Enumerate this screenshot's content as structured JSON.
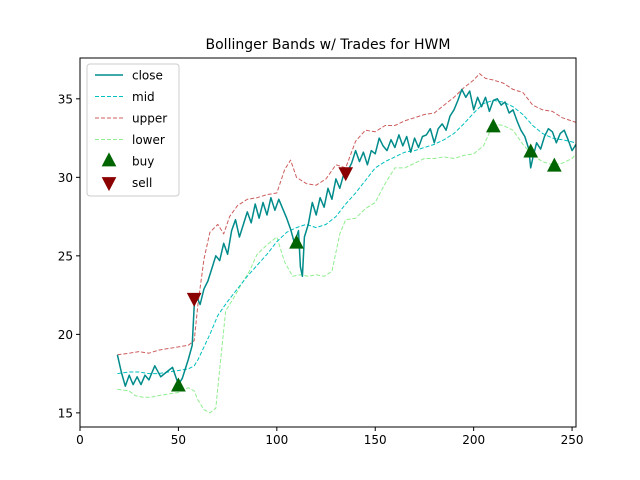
{
  "chart_data": {
    "type": "line",
    "title": "Bollinger Bands w/ Trades for HWM",
    "xlabel": "",
    "ylabel": "",
    "xlim": [
      0,
      252
    ],
    "ylim": [
      14.1,
      37.6
    ],
    "x_ticks": [
      0,
      50,
      100,
      150,
      200,
      250
    ],
    "y_ticks": [
      15,
      20,
      25,
      30,
      35
    ],
    "grid": false,
    "legend_position": "upper-left",
    "series": [
      {
        "name": "close",
        "color": "#008b8b",
        "style": "solid",
        "points": [
          [
            19,
            18.7
          ],
          [
            21,
            17.6
          ],
          [
            23,
            16.7
          ],
          [
            25,
            17.4
          ],
          [
            27,
            16.8
          ],
          [
            29,
            17.3
          ],
          [
            31,
            16.8
          ],
          [
            33,
            17.4
          ],
          [
            35,
            17.1
          ],
          [
            38,
            18.0
          ],
          [
            41,
            17.3
          ],
          [
            44,
            17.6
          ],
          [
            47,
            17.9
          ],
          [
            50,
            16.8
          ],
          [
            52,
            17.2
          ],
          [
            55,
            18.4
          ],
          [
            57,
            19.3
          ],
          [
            58,
            21.8
          ],
          [
            59,
            22.5
          ],
          [
            61,
            21.9
          ],
          [
            63,
            22.9
          ],
          [
            65,
            23.4
          ],
          [
            67,
            24.2
          ],
          [
            69,
            25.0
          ],
          [
            71,
            24.7
          ],
          [
            73,
            25.8
          ],
          [
            75,
            25.1
          ],
          [
            77,
            26.6
          ],
          [
            79,
            27.3
          ],
          [
            81,
            26.2
          ],
          [
            83,
            27.0
          ],
          [
            85,
            27.8
          ],
          [
            87,
            27.1
          ],
          [
            89,
            28.3
          ],
          [
            91,
            27.4
          ],
          [
            93,
            28.4
          ],
          [
            95,
            27.6
          ],
          [
            97,
            28.7
          ],
          [
            99,
            27.9
          ],
          [
            101,
            28.6
          ],
          [
            103,
            28.0
          ],
          [
            105,
            27.4
          ],
          [
            107,
            26.7
          ],
          [
            109,
            25.8
          ],
          [
            111,
            26.6
          ],
          [
            112,
            24.3
          ],
          [
            113,
            23.7
          ],
          [
            114,
            26.2
          ],
          [
            116,
            27.0
          ],
          [
            118,
            28.4
          ],
          [
            120,
            27.6
          ],
          [
            122,
            28.7
          ],
          [
            124,
            28.1
          ],
          [
            126,
            29.3
          ],
          [
            128,
            28.6
          ],
          [
            130,
            29.9
          ],
          [
            132,
            29.3
          ],
          [
            134,
            30.2
          ],
          [
            136,
            30.4
          ],
          [
            138,
            30.9
          ],
          [
            140,
            31.7
          ],
          [
            142,
            31.0
          ],
          [
            144,
            31.6
          ],
          [
            146,
            30.8
          ],
          [
            148,
            31.7
          ],
          [
            150,
            31.5
          ],
          [
            152,
            32.5
          ],
          [
            154,
            32.0
          ],
          [
            156,
            31.7
          ],
          [
            158,
            32.4
          ],
          [
            160,
            31.9
          ],
          [
            162,
            32.7
          ],
          [
            164,
            32.0
          ],
          [
            166,
            32.6
          ],
          [
            168,
            31.6
          ],
          [
            170,
            32.5
          ],
          [
            172,
            31.9
          ],
          [
            174,
            32.6
          ],
          [
            176,
            32.7
          ],
          [
            178,
            33.1
          ],
          [
            180,
            32.2
          ],
          [
            182,
            33.1
          ],
          [
            184,
            33.4
          ],
          [
            186,
            33.0
          ],
          [
            188,
            33.9
          ],
          [
            190,
            34.3
          ],
          [
            192,
            34.9
          ],
          [
            194,
            35.6
          ],
          [
            196,
            35.1
          ],
          [
            198,
            35.5
          ],
          [
            200,
            34.3
          ],
          [
            202,
            35.1
          ],
          [
            204,
            34.5
          ],
          [
            206,
            35.1
          ],
          [
            208,
            34.2
          ],
          [
            210,
            34.9
          ],
          [
            212,
            35.0
          ],
          [
            214,
            34.6
          ],
          [
            216,
            34.8
          ],
          [
            218,
            34.1
          ],
          [
            220,
            34.3
          ],
          [
            222,
            33.6
          ],
          [
            224,
            33.0
          ],
          [
            226,
            32.6
          ],
          [
            228,
            31.8
          ],
          [
            229,
            30.6
          ],
          [
            230,
            31.2
          ],
          [
            232,
            32.2
          ],
          [
            234,
            31.8
          ],
          [
            236,
            32.6
          ],
          [
            238,
            33.1
          ],
          [
            240,
            32.9
          ],
          [
            242,
            32.2
          ],
          [
            244,
            32.8
          ],
          [
            246,
            33.0
          ],
          [
            248,
            32.4
          ],
          [
            250,
            31.7
          ],
          [
            252,
            32.1
          ]
        ]
      },
      {
        "name": "mid",
        "color": "#00bfbf",
        "style": "dashed",
        "points": [
          [
            19,
            17.5
          ],
          [
            25,
            17.6
          ],
          [
            30,
            17.6
          ],
          [
            35,
            17.5
          ],
          [
            40,
            17.5
          ],
          [
            45,
            17.6
          ],
          [
            50,
            17.7
          ],
          [
            55,
            17.8
          ],
          [
            58,
            18.0
          ],
          [
            60,
            18.4
          ],
          [
            63,
            19.2
          ],
          [
            66,
            20.0
          ],
          [
            70,
            21.2
          ],
          [
            75,
            22.1
          ],
          [
            80,
            22.9
          ],
          [
            85,
            23.7
          ],
          [
            90,
            24.4
          ],
          [
            95,
            25.1
          ],
          [
            100,
            25.9
          ],
          [
            105,
            26.5
          ],
          [
            110,
            26.8
          ],
          [
            115,
            27.0
          ],
          [
            120,
            26.8
          ],
          [
            125,
            27.0
          ],
          [
            130,
            27.5
          ],
          [
            135,
            28.3
          ],
          [
            140,
            29.0
          ],
          [
            145,
            29.8
          ],
          [
            150,
            30.6
          ],
          [
            155,
            31.0
          ],
          [
            160,
            31.3
          ],
          [
            165,
            31.6
          ],
          [
            170,
            31.7
          ],
          [
            175,
            31.9
          ],
          [
            180,
            32.1
          ],
          [
            185,
            32.4
          ],
          [
            190,
            32.8
          ],
          [
            195,
            33.4
          ],
          [
            200,
            34.1
          ],
          [
            205,
            34.7
          ],
          [
            210,
            34.9
          ],
          [
            215,
            34.8
          ],
          [
            220,
            34.5
          ],
          [
            225,
            34.0
          ],
          [
            230,
            33.3
          ],
          [
            235,
            32.8
          ],
          [
            240,
            32.5
          ],
          [
            245,
            32.4
          ],
          [
            252,
            32.2
          ]
        ]
      },
      {
        "name": "upper",
        "color": "#cd5c5c",
        "style": "dashed",
        "points": [
          [
            19,
            18.7
          ],
          [
            25,
            18.8
          ],
          [
            30,
            18.9
          ],
          [
            35,
            18.8
          ],
          [
            40,
            19.0
          ],
          [
            45,
            19.1
          ],
          [
            50,
            19.2
          ],
          [
            55,
            19.3
          ],
          [
            58,
            19.6
          ],
          [
            60,
            22.0
          ],
          [
            63,
            24.8
          ],
          [
            66,
            26.5
          ],
          [
            70,
            27.0
          ],
          [
            73,
            26.4
          ],
          [
            76,
            27.5
          ],
          [
            80,
            28.2
          ],
          [
            85,
            28.6
          ],
          [
            90,
            28.7
          ],
          [
            95,
            28.9
          ],
          [
            100,
            29.0
          ],
          [
            104,
            30.5
          ],
          [
            107,
            31.1
          ],
          [
            110,
            30.0
          ],
          [
            115,
            29.6
          ],
          [
            120,
            29.5
          ],
          [
            125,
            29.9
          ],
          [
            130,
            30.8
          ],
          [
            135,
            30.6
          ],
          [
            140,
            32.3
          ],
          [
            145,
            33.0
          ],
          [
            150,
            32.9
          ],
          [
            155,
            33.3
          ],
          [
            160,
            33.3
          ],
          [
            165,
            33.6
          ],
          [
            170,
            33.8
          ],
          [
            175,
            34.0
          ],
          [
            180,
            34.1
          ],
          [
            185,
            34.6
          ],
          [
            190,
            35.1
          ],
          [
            195,
            35.7
          ],
          [
            200,
            36.2
          ],
          [
            203,
            36.6
          ],
          [
            206,
            36.3
          ],
          [
            210,
            36.2
          ],
          [
            215,
            36.0
          ],
          [
            220,
            35.6
          ],
          [
            225,
            35.4
          ],
          [
            230,
            34.6
          ],
          [
            235,
            34.3
          ],
          [
            240,
            34.2
          ],
          [
            245,
            33.8
          ],
          [
            252,
            33.5
          ]
        ]
      },
      {
        "name": "lower",
        "color": "#90ee90",
        "style": "dashed",
        "points": [
          [
            19,
            16.5
          ],
          [
            25,
            16.4
          ],
          [
            28,
            16.1
          ],
          [
            32,
            16.0
          ],
          [
            36,
            16.0
          ],
          [
            40,
            16.1
          ],
          [
            45,
            16.2
          ],
          [
            50,
            16.3
          ],
          [
            55,
            16.6
          ],
          [
            58,
            16.4
          ],
          [
            60,
            15.8
          ],
          [
            63,
            15.2
          ],
          [
            66,
            15.0
          ],
          [
            69,
            15.3
          ],
          [
            71,
            17.8
          ],
          [
            74,
            21.5
          ],
          [
            78,
            22.3
          ],
          [
            82,
            23.2
          ],
          [
            86,
            24.0
          ],
          [
            90,
            25.1
          ],
          [
            95,
            25.7
          ],
          [
            100,
            26.2
          ],
          [
            104,
            24.6
          ],
          [
            108,
            23.7
          ],
          [
            112,
            23.8
          ],
          [
            116,
            23.7
          ],
          [
            120,
            23.8
          ],
          [
            124,
            23.7
          ],
          [
            128,
            24.0
          ],
          [
            132,
            26.4
          ],
          [
            135,
            27.3
          ],
          [
            140,
            27.4
          ],
          [
            145,
            28.0
          ],
          [
            150,
            28.4
          ],
          [
            155,
            29.6
          ],
          [
            160,
            30.6
          ],
          [
            165,
            30.6
          ],
          [
            170,
            30.9
          ],
          [
            175,
            31.2
          ],
          [
            180,
            31.2
          ],
          [
            185,
            31.3
          ],
          [
            190,
            31.2
          ],
          [
            195,
            31.4
          ],
          [
            200,
            31.5
          ],
          [
            205,
            32.0
          ],
          [
            210,
            33.4
          ],
          [
            215,
            33.3
          ],
          [
            220,
            33.0
          ],
          [
            225,
            32.1
          ],
          [
            230,
            31.4
          ],
          [
            235,
            31.0
          ],
          [
            240,
            30.8
          ],
          [
            245,
            30.9
          ],
          [
            250,
            31.2
          ],
          [
            252,
            31.5
          ]
        ]
      }
    ],
    "buy": {
      "name": "buy",
      "color": "#006400",
      "marker": "triangle-up",
      "points": [
        [
          50,
          16.7
        ],
        [
          110,
          25.8
        ],
        [
          210,
          33.2
        ],
        [
          229,
          31.6
        ],
        [
          241,
          30.7
        ]
      ]
    },
    "sell": {
      "name": "sell",
      "color": "#8b0000",
      "marker": "triangle-down",
      "points": [
        [
          58,
          22.3
        ],
        [
          135,
          30.3
        ]
      ]
    }
  }
}
